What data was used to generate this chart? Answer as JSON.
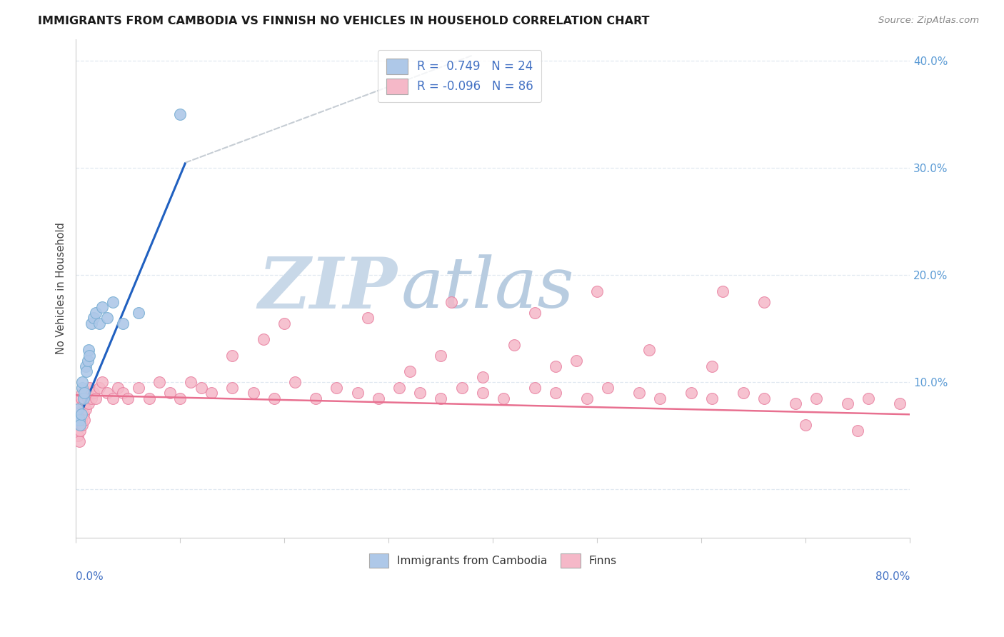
{
  "title": "IMMIGRANTS FROM CAMBODIA VS FINNISH NO VEHICLES IN HOUSEHOLD CORRELATION CHART",
  "source": "Source: ZipAtlas.com",
  "ylabel": "No Vehicles in Household",
  "blue_color": "#aec8e8",
  "blue_edge": "#7aafd4",
  "pink_color": "#f5b8c8",
  "pink_edge": "#e880a0",
  "blue_line_color": "#2060c0",
  "pink_line_color": "#e87090",
  "dashed_line_color": "#c0c8d0",
  "watermark_zip_color": "#c8d8e8",
  "watermark_atlas_color": "#b8cce0",
  "background": "#ffffff",
  "grid_color": "#e0e8f0",
  "xlim": [
    0.0,
    0.8
  ],
  "ylim": [
    -0.045,
    0.42
  ],
  "y_ticks": [
    0.0,
    0.1,
    0.2,
    0.3,
    0.4
  ],
  "y_tick_labels": [
    "",
    "10.0%",
    "20.0%",
    "30.0%",
    "40.0%"
  ],
  "blue_scatter_x": [
    0.001,
    0.002,
    0.003,
    0.004,
    0.005,
    0.006,
    0.006,
    0.007,
    0.008,
    0.009,
    0.01,
    0.011,
    0.012,
    0.013,
    0.015,
    0.017,
    0.019,
    0.022,
    0.025,
    0.03,
    0.035,
    0.045,
    0.06,
    0.1
  ],
  "blue_scatter_y": [
    0.065,
    0.075,
    0.065,
    0.06,
    0.07,
    0.095,
    0.1,
    0.085,
    0.09,
    0.115,
    0.11,
    0.12,
    0.13,
    0.125,
    0.155,
    0.16,
    0.165,
    0.155,
    0.17,
    0.16,
    0.175,
    0.155,
    0.165,
    0.35
  ],
  "pink_scatter_x": [
    0.001,
    0.002,
    0.002,
    0.003,
    0.003,
    0.004,
    0.004,
    0.005,
    0.005,
    0.006,
    0.006,
    0.007,
    0.007,
    0.008,
    0.008,
    0.009,
    0.01,
    0.011,
    0.012,
    0.013,
    0.015,
    0.017,
    0.019,
    0.022,
    0.025,
    0.03,
    0.035,
    0.04,
    0.045,
    0.05,
    0.06,
    0.07,
    0.08,
    0.09,
    0.1,
    0.11,
    0.12,
    0.13,
    0.15,
    0.17,
    0.19,
    0.21,
    0.23,
    0.25,
    0.27,
    0.29,
    0.31,
    0.33,
    0.35,
    0.37,
    0.39,
    0.41,
    0.44,
    0.46,
    0.49,
    0.51,
    0.54,
    0.56,
    0.59,
    0.61,
    0.64,
    0.66,
    0.69,
    0.71,
    0.74,
    0.76,
    0.79,
    0.36,
    0.44,
    0.5,
    0.62,
    0.66,
    0.15,
    0.18,
    0.2,
    0.28,
    0.35,
    0.42,
    0.48,
    0.55,
    0.61,
    0.7,
    0.75,
    0.32,
    0.39,
    0.46
  ],
  "pink_scatter_y": [
    0.06,
    0.05,
    0.07,
    0.045,
    0.075,
    0.055,
    0.08,
    0.065,
    0.085,
    0.06,
    0.09,
    0.07,
    0.08,
    0.065,
    0.085,
    0.075,
    0.09,
    0.085,
    0.08,
    0.095,
    0.085,
    0.09,
    0.085,
    0.095,
    0.1,
    0.09,
    0.085,
    0.095,
    0.09,
    0.085,
    0.095,
    0.085,
    0.1,
    0.09,
    0.085,
    0.1,
    0.095,
    0.09,
    0.095,
    0.09,
    0.085,
    0.1,
    0.085,
    0.095,
    0.09,
    0.085,
    0.095,
    0.09,
    0.085,
    0.095,
    0.09,
    0.085,
    0.095,
    0.09,
    0.085,
    0.095,
    0.09,
    0.085,
    0.09,
    0.085,
    0.09,
    0.085,
    0.08,
    0.085,
    0.08,
    0.085,
    0.08,
    0.175,
    0.165,
    0.185,
    0.185,
    0.175,
    0.125,
    0.14,
    0.155,
    0.16,
    0.125,
    0.135,
    0.12,
    0.13,
    0.115,
    0.06,
    0.055,
    0.11,
    0.105,
    0.115
  ],
  "blue_line_x": [
    0.0,
    0.105
  ],
  "blue_line_y": [
    0.06,
    0.305
  ],
  "pink_line_x": [
    0.0,
    0.8
  ],
  "pink_line_y": [
    0.088,
    0.07
  ],
  "dash_line_x": [
    0.105,
    0.38
  ],
  "dash_line_y": [
    0.305,
    0.405
  ]
}
